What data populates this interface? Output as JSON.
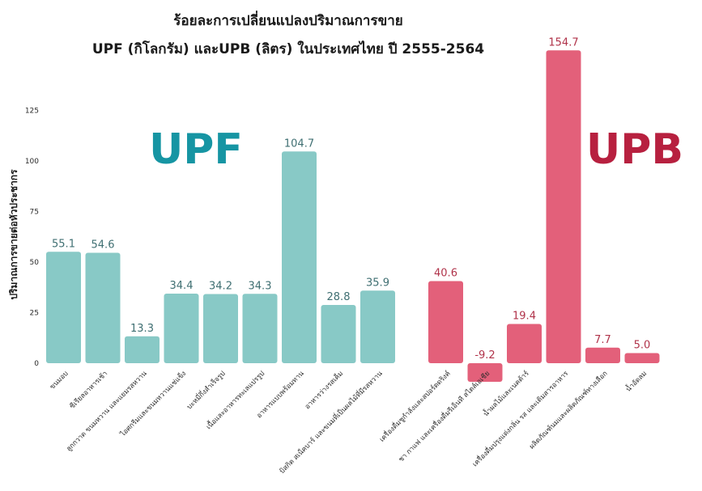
{
  "chart_data": {
    "type": "bar",
    "title_lines": [
      "ร้อยละการเปลี่ยนแปลงปริมาณการขาย",
      "UPF (กิโลกรัม) และUPB (ลิตร) ในประเทศไทย ปี 2555-2564"
    ],
    "ylabel": "ปริมาณการขายต่อหัวประชากร",
    "ylim": [
      -15,
      160
    ],
    "yticks": [
      "0",
      "25",
      "50",
      "75",
      "100",
      "125"
    ],
    "ytick_values": [
      0,
      25,
      50,
      75,
      100,
      125
    ],
    "groups": [
      {
        "name": "UPF",
        "color": "#88c9c6",
        "categories": [
          "ขนมอบ",
          "ซีเรียลอาหารเช้า",
          "ลูกกวาด ขนมหวาน และแยมรสหวาน",
          "ไอศกรีมและขนมหวานแช่แข็ง",
          "บะหมี่กึ่งสำเร็จรูป",
          "เนื้อและอาหารทะเลแปรรูป",
          "อาหารแบบพร้อมทาน",
          "อาหารว่างรสเค็ม",
          "บิสกิต สเน็คบาร์ และขนมที่เป็นผลไม้ที่มีรสหวาน"
        ],
        "values": [
          55.1,
          54.6,
          13.3,
          34.4,
          34.2,
          34.3,
          104.7,
          28.8,
          35.9
        ],
        "value_labels": [
          "55.1",
          "54.6",
          "13.3",
          "34.4",
          "34.2",
          "34.3",
          "104.7",
          "28.8",
          "35.9"
        ]
      },
      {
        "name": "UPB",
        "color": "#e3607a",
        "categories": [
          "เครื่องดื่มชูกำลังและสปอร์ตดริงค์",
          "ชา กาแฟ และเครื่องดื่มรีเอ็นที สไตล์เอเชีย",
          "น้ำผลไม้และเนคต้าร์",
          "เครื่องดื่มปรุงแต่งกลิ่น รส และเติมสารอาหาร",
          "ผลิตภัณฑ์นมและผลิตภัณฑ์ทางเลือก",
          "น้ำอัดลม"
        ],
        "values": [
          40.6,
          -9.2,
          19.4,
          154.7,
          7.7,
          5.0
        ],
        "value_labels": [
          "40.6",
          "-9.2",
          "19.4",
          "154.7",
          "7.7",
          "5.0"
        ]
      }
    ],
    "grid": false,
    "legend": "none"
  }
}
